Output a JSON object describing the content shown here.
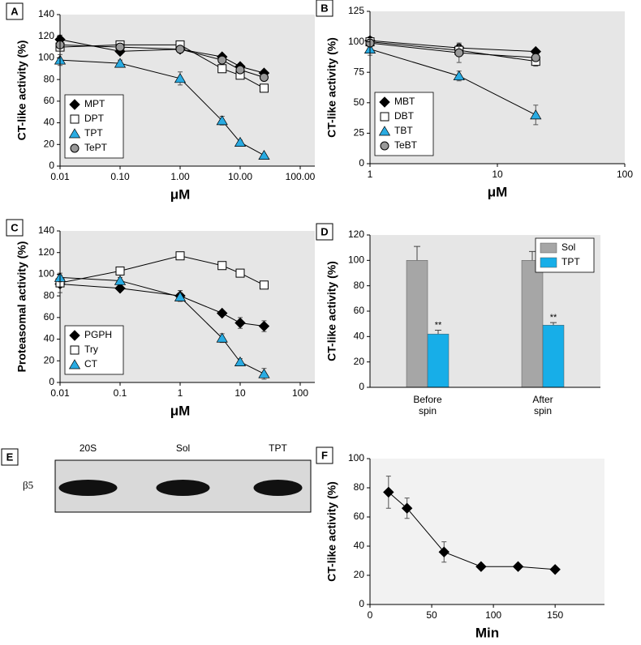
{
  "chart_data": [
    {
      "type": "line",
      "panel": "A",
      "ylabel": "CT-like activity (%)",
      "xlabel": "μM",
      "xscale": "log",
      "x": [
        0.01,
        0.1,
        1,
        5,
        10,
        25
      ],
      "xlim": [
        0.01,
        100
      ],
      "xticks": [
        {
          "value": 0.01,
          "label": "0.01"
        },
        {
          "value": 0.1,
          "label": "0.10"
        },
        {
          "value": 1,
          "label": "1.00"
        },
        {
          "value": 10,
          "label": "10.00"
        },
        {
          "value": 100,
          "label": "100.00"
        }
      ],
      "ylim": [
        0,
        140
      ],
      "yticks": [
        0,
        20,
        40,
        60,
        80,
        100,
        120,
        140
      ],
      "legend": "lower left",
      "series": [
        {
          "name": "MPT",
          "marker": "diamond",
          "color": "#000000",
          "values": [
            117,
            106,
            108,
            101,
            92,
            86
          ],
          "errors": [
            4,
            2,
            2,
            2,
            2,
            2
          ]
        },
        {
          "name": "DPT",
          "marker": "square",
          "color": "#ffffff",
          "values": [
            110,
            112,
            112,
            90,
            84,
            72
          ],
          "errors": [
            2,
            2,
            2,
            2,
            2,
            3
          ]
        },
        {
          "name": "TPT",
          "marker": "triangle",
          "color": "#29abe2",
          "values": [
            98,
            95,
            81,
            42,
            22,
            10
          ],
          "errors": [
            5,
            3,
            6,
            4,
            2,
            1
          ]
        },
        {
          "name": "TePT",
          "marker": "circle",
          "color": "#999999",
          "values": [
            112,
            110,
            108,
            98,
            89,
            82
          ],
          "errors": [
            2,
            2,
            2,
            2,
            2,
            2
          ]
        }
      ]
    },
    {
      "type": "line",
      "panel": "B",
      "ylabel": "CT-like activity (%)",
      "xlabel": "μM",
      "xscale": "log",
      "x": [
        1,
        5,
        20
      ],
      "xlim": [
        1,
        100
      ],
      "xticks": [
        1,
        10,
        100
      ],
      "ylim": [
        0,
        125
      ],
      "yticks": [
        0,
        25,
        50,
        75,
        100,
        125
      ],
      "legend": "lower left",
      "series": [
        {
          "name": "MBT",
          "marker": "diamond",
          "color": "#000000",
          "values": [
            101,
            95,
            92
          ],
          "errors": [
            3,
            3,
            2
          ]
        },
        {
          "name": "DBT",
          "marker": "square",
          "color": "#ffffff",
          "values": [
            100,
            93,
            84
          ],
          "errors": [
            3,
            3,
            4
          ]
        },
        {
          "name": "TBT",
          "marker": "triangle",
          "color": "#29abe2",
          "values": [
            94,
            72,
            40
          ],
          "errors": [
            5,
            4,
            8
          ]
        },
        {
          "name": "TeBT",
          "marker": "circle",
          "color": "#999999",
          "values": [
            99,
            91,
            87
          ],
          "errors": [
            3,
            8,
            3
          ]
        }
      ]
    },
    {
      "type": "line",
      "panel": "C",
      "ylabel": "Proteasomal activity (%)",
      "xlabel": "μM",
      "xscale": "log",
      "x": [
        0.01,
        0.1,
        1,
        5,
        10,
        25
      ],
      "xlim": [
        0.01,
        100
      ],
      "xticks": [
        0.01,
        0.1,
        1,
        10,
        100
      ],
      "ylim": [
        0,
        140
      ],
      "yticks": [
        0,
        20,
        40,
        60,
        80,
        100,
        120,
        140
      ],
      "legend": "lower left",
      "series": [
        {
          "name": "PGPH",
          "marker": "diamond",
          "color": "#000000",
          "values": [
            91,
            87,
            80,
            64,
            55,
            52
          ],
          "errors": [
            8,
            2,
            5,
            2,
            5,
            5
          ]
        },
        {
          "name": "Try",
          "marker": "square",
          "color": "#ffffff",
          "values": [
            92,
            103,
            117,
            108,
            101,
            90
          ],
          "errors": [
            2,
            2,
            2,
            2,
            2,
            2
          ]
        },
        {
          "name": "CT",
          "marker": "triangle",
          "color": "#29abe2",
          "values": [
            97,
            94,
            79,
            41,
            19,
            8
          ],
          "errors": [
            4,
            3,
            4,
            4,
            3,
            5
          ]
        }
      ]
    },
    {
      "type": "bar",
      "panel": "D",
      "ylabel": "CT-like activity (%)",
      "categories": [
        "Before spin",
        "After spin"
      ],
      "ylim": [
        0,
        120
      ],
      "yticks": [
        0,
        20,
        40,
        60,
        80,
        100,
        120
      ],
      "legend": "upper right",
      "series": [
        {
          "name": "Sol",
          "color": "#a6a6a6",
          "values": [
            100,
            100
          ],
          "errors": [
            11,
            7
          ]
        },
        {
          "name": "TPT",
          "color": "#17aee8",
          "values": [
            42,
            49
          ],
          "errors": [
            3,
            2
          ],
          "annotations": [
            "**",
            "**"
          ]
        }
      ]
    },
    {
      "type": "blot",
      "panel": "E",
      "lanes": [
        "20S",
        "Sol",
        "TPT"
      ],
      "band_label": "β5"
    },
    {
      "type": "line",
      "panel": "F",
      "ylabel": "CT-like activity (%)",
      "xlabel": "Min",
      "x": [
        15,
        30,
        60,
        90,
        120,
        150
      ],
      "xlim": [
        0,
        190
      ],
      "xticks": [
        0,
        50,
        100,
        150
      ],
      "ylim": [
        0,
        100
      ],
      "yticks": [
        0,
        20,
        40,
        60,
        80,
        100
      ],
      "series": [
        {
          "marker": "diamond",
          "color": "#000000",
          "values": [
            77,
            66,
            36,
            26,
            26,
            24
          ],
          "errors": [
            11,
            7,
            7,
            1,
            1,
            1
          ]
        }
      ]
    }
  ]
}
